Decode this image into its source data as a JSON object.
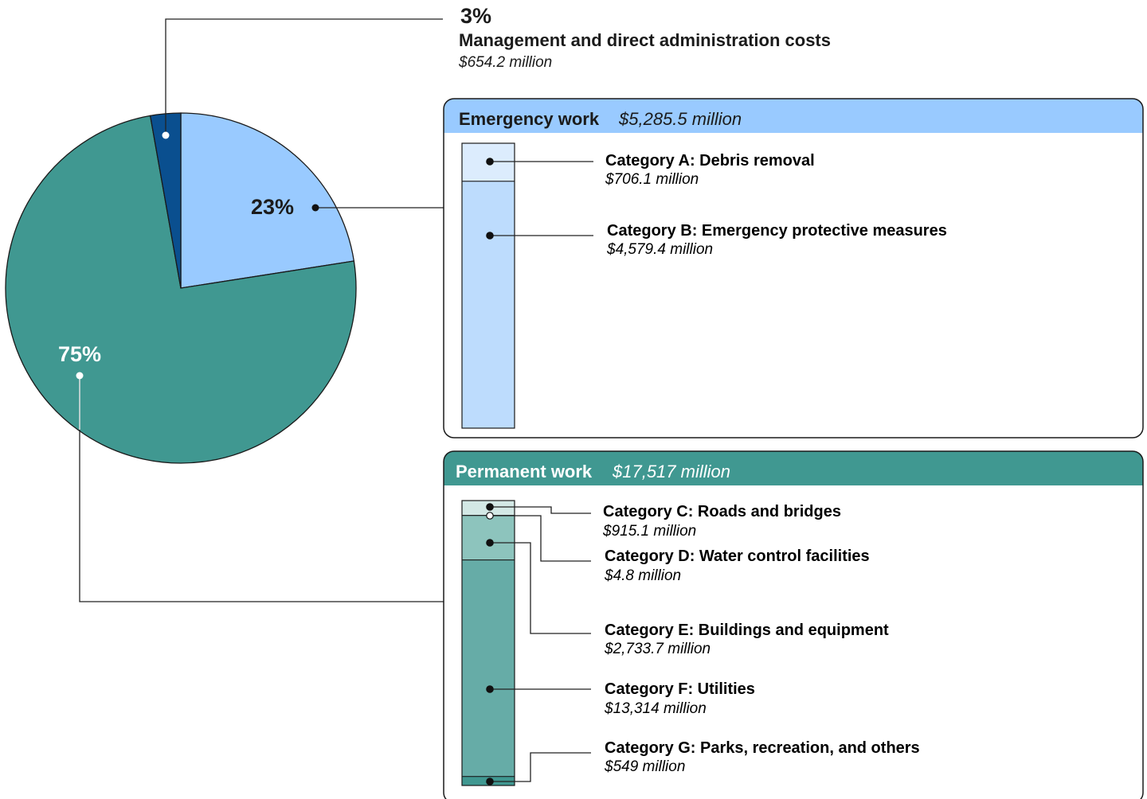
{
  "colors": {
    "admin": "#0a4f8f",
    "emergency": "#99caff",
    "emergency_header": "#99caff",
    "permanent": "#409891",
    "cat_a": "#dcecfd",
    "cat_b": "#bddcfd",
    "cat_c": "#d3e8e5",
    "cat_d": "#a9d4ce",
    "cat_e": "#8dc4bd",
    "cat_f": "#66aca7",
    "cat_g": "#409891"
  },
  "chart_data": {
    "type": "pie",
    "slices": [
      {
        "key": "emergency",
        "percent_label": "23%",
        "value": 5285.5
      },
      {
        "key": "permanent",
        "percent_label": "75%",
        "value": 17517
      },
      {
        "key": "admin",
        "percent_label": "3%",
        "value": 654.2
      }
    ],
    "admin": {
      "percent_label": "3%",
      "title": "Management and direct administration costs",
      "value_label": "$654.2 million"
    },
    "emergency_work": {
      "title": "Emergency work",
      "value_label": "$5,285.5 million",
      "categories": [
        {
          "key": "cat_a",
          "title": "Category A: Debris removal",
          "value": 706.1,
          "value_label": "$706.1 million"
        },
        {
          "key": "cat_b",
          "title": "Category B: Emergency protective measures",
          "value": 4579.4,
          "value_label": "$4,579.4 million"
        }
      ]
    },
    "permanent_work": {
      "title": "Permanent work",
      "value_label": "$17,517 million",
      "categories": [
        {
          "key": "cat_c",
          "title": "Category C: Roads and bridges",
          "value": 915.1,
          "value_label": "$915.1 million"
        },
        {
          "key": "cat_d",
          "title": "Category D: Water control facilities",
          "value": 4.8,
          "value_label": "$4.8 million"
        },
        {
          "key": "cat_e",
          "title": "Category E: Buildings and equipment",
          "value": 2733.7,
          "value_label": "$2,733.7 million"
        },
        {
          "key": "cat_f",
          "title": "Category F: Utilities",
          "value": 13314,
          "value_label": "$13,314 million"
        },
        {
          "key": "cat_g",
          "title": "Category G: Parks, recreation, and others",
          "value": 549,
          "value_label": "$549 million"
        }
      ]
    }
  }
}
